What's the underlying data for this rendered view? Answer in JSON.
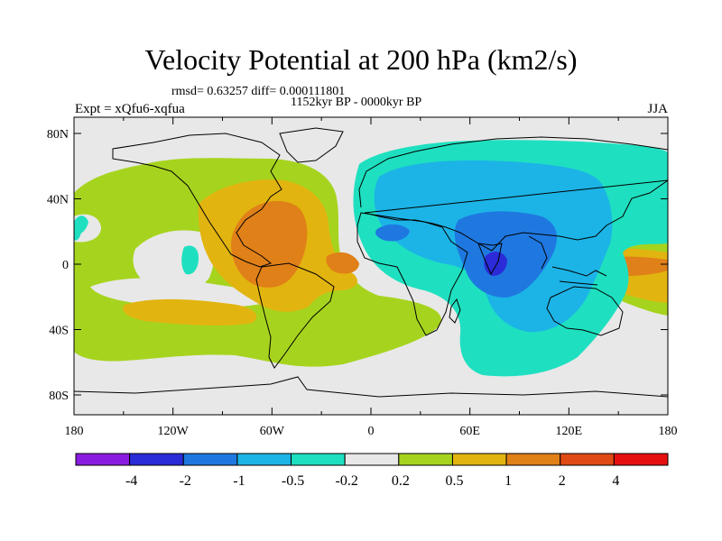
{
  "title": "Velocity Potential at 200 hPa (km2/s)",
  "stats": "rmsd= 0.63257 diff= 0.000111801",
  "period": "1152kyr BP - 0000kyr BP",
  "experiment": "Expt = xQfu6-xqfua",
  "season": "JJA",
  "lat_ticks": [
    "80N",
    "40N",
    "0",
    "40S",
    "80S"
  ],
  "lon_ticks": [
    "180",
    "120W",
    "60W",
    "0",
    "60E",
    "120E",
    "180"
  ],
  "colorbar": {
    "colors": [
      "#8a1be0",
      "#2b2bd8",
      "#1e78e0",
      "#1cb4e6",
      "#1ee0c0",
      "#e8e8e8",
      "#a6d41e",
      "#e2b410",
      "#e08018",
      "#e04a14",
      "#e61010"
    ],
    "labels": [
      "-4",
      "-2",
      "-1",
      "-0.5",
      "-0.2",
      "0.2",
      "0.5",
      "1",
      "2",
      "4"
    ]
  },
  "field_colors": {
    "neutral": "#e8e8e8",
    "pos_weak": "#a6d41e",
    "pos_mid": "#e2b410",
    "pos_strong": "#e08018",
    "neg_weak": "#1ee0c0",
    "neg_mid": "#1cb4e6",
    "neg_strong": "#1e78e0",
    "neg_extreme": "#2b2bd8"
  }
}
